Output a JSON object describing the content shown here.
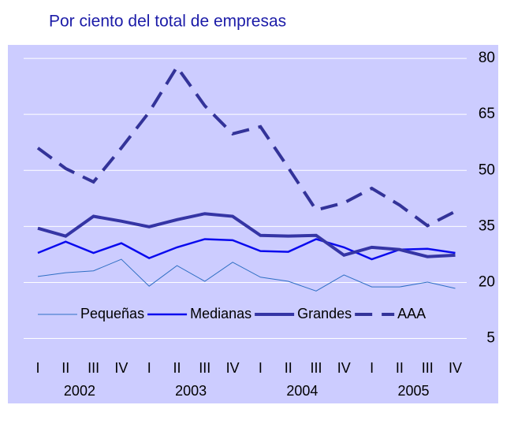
{
  "chart_data": {
    "type": "line",
    "title": "Por ciento del total de empresas",
    "categories": [
      "I",
      "II",
      "III",
      "IV",
      "I",
      "II",
      "III",
      "IV",
      "I",
      "II",
      "III",
      "IV",
      "I",
      "II",
      "III",
      "IV"
    ],
    "year_labels": [
      "2002",
      "2003",
      "2004",
      "2005"
    ],
    "series": [
      {
        "name": "Pequeñas",
        "color": "#2f6fc4",
        "width": 1,
        "dash": false,
        "values": [
          21.6,
          22.6,
          23.1,
          26.2,
          19.0,
          24.5,
          20.3,
          25.4,
          21.4,
          20.3,
          17.7,
          22.0,
          18.8,
          18.8,
          20.1,
          18.4
        ]
      },
      {
        "name": "Medianas",
        "color": "#0a0aee",
        "width": 2.5,
        "dash": false,
        "values": [
          27.9,
          30.9,
          27.9,
          30.5,
          26.5,
          29.4,
          31.6,
          31.3,
          28.4,
          28.2,
          31.6,
          29.4,
          26.2,
          28.8,
          29.0,
          27.9
        ]
      },
      {
        "name": "Grandes",
        "color": "#3535a5",
        "width": 4,
        "dash": false,
        "values": [
          34.5,
          32.4,
          37.7,
          36.4,
          34.9,
          36.8,
          38.4,
          37.7,
          32.6,
          32.4,
          32.6,
          27.3,
          29.4,
          28.8,
          26.9,
          27.3
        ]
      },
      {
        "name": "AAA",
        "color": "#333399",
        "width": 4,
        "dash": true,
        "values": [
          56.0,
          50.5,
          46.9,
          56.0,
          65.6,
          77.7,
          67.3,
          59.8,
          61.7,
          50.7,
          39.4,
          41.3,
          45.2,
          40.7,
          35.2,
          39.0
        ]
      }
    ],
    "ylim": [
      -12.4,
      83.6
    ],
    "yticks": [
      80,
      65,
      50,
      35,
      20,
      5
    ],
    "grid": true,
    "background": "#ccccff",
    "legend": "inside-bottom"
  }
}
